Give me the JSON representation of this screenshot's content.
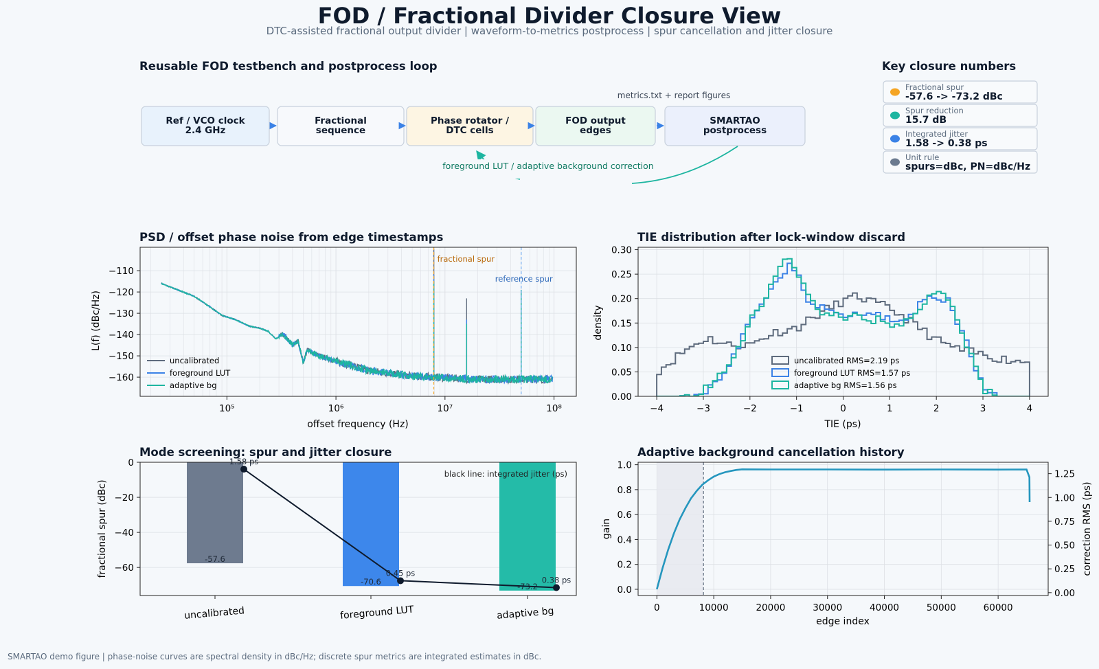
{
  "header": {
    "title": "FOD / Fractional Divider Closure View",
    "subtitle": "DTC-assisted fractional output divider | waveform-to-metrics postprocess | spur cancellation and jitter closure"
  },
  "footer": "SMARTAO demo figure | phase-noise curves are spectral density in dBc/Hz; discrete spur metrics are integrated estimates in dBc.",
  "flow": {
    "title": "Reusable FOD testbench and postprocess loop",
    "nodes": [
      {
        "line1": "Ref / VCO clock",
        "line2": "2.4 GHz",
        "fill": "#e8f2fc"
      },
      {
        "line1": "Fractional",
        "line2": "sequence",
        "fill": "#f7f9fc"
      },
      {
        "line1": "Phase rotator /",
        "line2": "DTC cells",
        "fill": "#fdf5e3"
      },
      {
        "line1": "FOD output",
        "line2": "edges",
        "fill": "#ebf8f1"
      },
      {
        "line1": "SMARTAO",
        "line2": "postprocess",
        "fill": "#ebf0fc"
      }
    ],
    "note_top": "metrics.txt + report figures",
    "feedback_label": "foreground LUT / adaptive background correction"
  },
  "key_numbers": {
    "title": "Key closure numbers",
    "items": [
      {
        "label": "Fractional spur",
        "value": "-57.6 -> -73.2 dBc",
        "color": "#f5a524"
      },
      {
        "label": "Spur reduction",
        "value": "15.7 dB",
        "color": "#1db5a0"
      },
      {
        "label": "Integrated jitter",
        "value": "1.58 -> 0.38 ps",
        "color": "#3b82e6"
      },
      {
        "label": "Unit rule",
        "value": "spurs=dBc, PN=dBc/Hz",
        "color": "#6b7a8f"
      }
    ]
  },
  "colors": {
    "uncal": "#5e6b7d",
    "fg": "#3b82e6",
    "bg": "#1db5a0",
    "jitter": "#0f1b2d",
    "history": "#2596be"
  },
  "chart_data": [
    {
      "id": "psd",
      "type": "line",
      "title": "PSD / offset phase noise from edge timestamps",
      "xlabel": "offset frequency (Hz)",
      "ylabel": "L(f) (dBc/Hz)",
      "xscale": "log",
      "xlim": [
        16000,
        160000000
      ],
      "ylim": [
        -169,
        -99
      ],
      "x_ticks": [
        100000,
        1000000,
        10000000,
        100000000
      ],
      "x_tick_labels": [
        "10⁵",
        "10⁶",
        "10⁷",
        "10⁸"
      ],
      "y_ticks": [
        -110,
        -120,
        -130,
        -140,
        -150,
        -160
      ],
      "series": [
        {
          "name": "uncalibrated",
          "color": "#5e6b7d"
        },
        {
          "name": "foreground LUT",
          "color": "#3b82e6"
        },
        {
          "name": "adaptive bg",
          "color": "#1db5a0"
        }
      ],
      "x": [
        25000,
        50000,
        70000,
        90000,
        120000,
        160000,
        200000,
        240000,
        280000,
        330000,
        400000,
        450000,
        500000,
        550000,
        700000,
        1000000,
        1500000,
        2000000,
        3000000,
        5000000,
        8000000,
        12000000,
        20000000,
        40000000,
        97000000
      ],
      "y": [
        -116,
        -122,
        -127,
        -131,
        -133,
        -136,
        -137,
        -138.5,
        -142,
        -140,
        -145,
        -143,
        -153,
        -147,
        -150,
        -152.5,
        -155,
        -157,
        -158,
        -159.5,
        -160,
        -160.5,
        -161,
        -161,
        -161
      ],
      "spurs": [
        {
          "x": 7900000,
          "uncalibrated": -100,
          "foreground LUT": -112,
          "adaptive bg": -115
        },
        {
          "x": 15800000,
          "uncalibrated": -123,
          "foreground LUT": -133,
          "adaptive bg": -135
        },
        {
          "x": 50000000,
          "uncalibrated": -119,
          "foreground LUT": -119,
          "adaptive bg": -119
        }
      ],
      "annotations": [
        {
          "x": 7900000,
          "text": "fractional spur",
          "color": "#f5a524",
          "text_color": "#b8680a"
        },
        {
          "x": 50000000,
          "text": "reference spur",
          "color": "#6aa8f0",
          "text_color": "#2a66b8"
        }
      ],
      "legend": "lower-left",
      "grid": true
    },
    {
      "id": "tie",
      "type": "histogram",
      "title": "TIE distribution after lock-window discard",
      "xlabel": "TIE (ps)",
      "ylabel": "density",
      "xlim": [
        -4.4,
        4.4
      ],
      "ylim": [
        0,
        0.305
      ],
      "x_ticks": [
        -4,
        -3,
        -2,
        -1,
        0,
        1,
        2,
        3,
        4
      ],
      "x_tick_labels": [
        "−4",
        "−3",
        "−2",
        "−1",
        "0",
        "1",
        "2",
        "3",
        "4"
      ],
      "y_ticks": [
        0,
        0.05,
        0.1,
        0.15,
        0.2,
        0.25,
        0.3
      ],
      "y_tick_labels": [
        "0.00",
        "0.05",
        "0.10",
        "0.15",
        "0.20",
        "0.25",
        "0.30"
      ],
      "bins": {
        "start": -4,
        "end": 4,
        "count": 80
      },
      "series": [
        {
          "name": "uncalibrated RMS=2.19 ps",
          "color": "#5e6b7d",
          "shape": [
            [
              -4,
              0.05
            ],
            [
              -3.3,
              0.1
            ],
            [
              -2.9,
              0.12
            ],
            [
              -2.5,
              0.105
            ],
            [
              -2,
              0.105
            ],
            [
              -1.5,
              0.13
            ],
            [
              -1,
              0.14
            ],
            [
              -0.5,
              0.17
            ],
            [
              0,
              0.195
            ],
            [
              0.3,
              0.205
            ],
            [
              0.7,
              0.19
            ],
            [
              1,
              0.18
            ],
            [
              1.5,
              0.15
            ],
            [
              2,
              0.115
            ],
            [
              2.5,
              0.095
            ],
            [
              3,
              0.085
            ],
            [
              3.5,
              0.075
            ],
            [
              4,
              0.07
            ]
          ]
        },
        {
          "name": "foreground LUT RMS=1.57 ps",
          "color": "#3b82e6",
          "shape": [
            [
              -4,
              0
            ],
            [
              -3.5,
              0
            ],
            [
              -3,
              0.01
            ],
            [
              -2.5,
              0.05
            ],
            [
              -2,
              0.15
            ],
            [
              -1.5,
              0.23
            ],
            [
              -1.2,
              0.265
            ],
            [
              -1,
              0.26
            ],
            [
              -0.8,
              0.2
            ],
            [
              -0.5,
              0.18
            ],
            [
              0,
              0.165
            ],
            [
              0.5,
              0.17
            ],
            [
              1,
              0.16
            ],
            [
              1.3,
              0.155
            ],
            [
              1.7,
              0.19
            ],
            [
              2,
              0.205
            ],
            [
              2.3,
              0.19
            ],
            [
              2.6,
              0.12
            ],
            [
              3,
              0.02
            ],
            [
              3.3,
              0
            ],
            [
              4,
              0
            ]
          ]
        },
        {
          "name": "adaptive bg RMS=1.56 ps",
          "color": "#1db5a0",
          "shape": [
            [
              -4,
              0
            ],
            [
              -3.5,
              0
            ],
            [
              -3,
              0.01
            ],
            [
              -2.5,
              0.05
            ],
            [
              -2,
              0.15
            ],
            [
              -1.5,
              0.235
            ],
            [
              -1.2,
              0.29
            ],
            [
              -1,
              0.265
            ],
            [
              -0.8,
              0.21
            ],
            [
              -0.5,
              0.17
            ],
            [
              0,
              0.165
            ],
            [
              0.5,
              0.16
            ],
            [
              1,
              0.15
            ],
            [
              1.3,
              0.15
            ],
            [
              1.7,
              0.19
            ],
            [
              2,
              0.22
            ],
            [
              2.3,
              0.2
            ],
            [
              2.6,
              0.12
            ],
            [
              3,
              0.015
            ],
            [
              3.3,
              0
            ],
            [
              4,
              0
            ]
          ]
        }
      ],
      "legend": "lower-center",
      "grid": true
    },
    {
      "id": "modes",
      "type": "bar",
      "title": "Mode screening: spur and jitter closure",
      "ylabel": "fractional spur (dBc)",
      "categories": [
        "uncalibrated",
        "foreground LUT",
        "adaptive bg"
      ],
      "values": [
        -57.6,
        -70.6,
        -73.2
      ],
      "value_labels": [
        "-57.6",
        "-70.6",
        "-73.2"
      ],
      "bar_colors": [
        "#6e7b8f",
        "#3d87eb",
        "#24bba8"
      ],
      "ylim": [
        -76,
        0
      ],
      "y_ticks": [
        0,
        -20,
        -40,
        -60
      ],
      "y_tick_labels": [
        "0",
        "−20",
        "−40",
        "−60"
      ],
      "jitter_series": {
        "name": "integrated jitter (ps)",
        "values": [
          1.58,
          0.45,
          0.38
        ],
        "labels": [
          "1.58 ps",
          "0.45 ps",
          "0.38 ps"
        ],
        "ylim": [
          0.3,
          1.65
        ]
      },
      "note": "black line: integrated jitter (ps)",
      "grid": true
    },
    {
      "id": "history",
      "type": "line",
      "title": "Adaptive background cancellation history",
      "xlabel": "edge index",
      "ylabel": "gain",
      "y2label": "correction RMS (ps)",
      "xlim": [
        -3300,
        68800
      ],
      "ylim": [
        -0.05,
        1.02
      ],
      "y2lim": [
        -0.03,
        1.37
      ],
      "x_ticks": [
        0,
        10000,
        20000,
        30000,
        40000,
        50000,
        60000
      ],
      "y_ticks": [
        0,
        0.2,
        0.4,
        0.6,
        0.8,
        1.0
      ],
      "y_tick_labels": [
        "0.0",
        "0.2",
        "0.4",
        "0.6",
        "0.8",
        "1.0"
      ],
      "y2_ticks": [
        0,
        0.25,
        0.5,
        0.75,
        1.0,
        1.25
      ],
      "y2_tick_labels": [
        "0.00",
        "0.25",
        "0.50",
        "0.75",
        "1.00",
        "1.25"
      ],
      "discard_window": [
        0,
        8192
      ],
      "series": [
        {
          "name": "gain",
          "x": [
            0,
            1000,
            2000,
            3000,
            4000,
            5000,
            6000,
            7000,
            8000,
            9000,
            10000,
            11000,
            12000,
            13000,
            14000,
            15000,
            20000,
            30000,
            40000,
            50000,
            60000,
            65000,
            65500,
            65536
          ],
          "y": [
            0,
            0.17,
            0.32,
            0.45,
            0.56,
            0.65,
            0.73,
            0.79,
            0.84,
            0.875,
            0.905,
            0.925,
            0.94,
            0.95,
            0.958,
            0.963,
            0.962,
            0.962,
            0.961,
            0.962,
            0.961,
            0.962,
            0.9,
            0.7
          ]
        }
      ],
      "grid": true
    }
  ]
}
